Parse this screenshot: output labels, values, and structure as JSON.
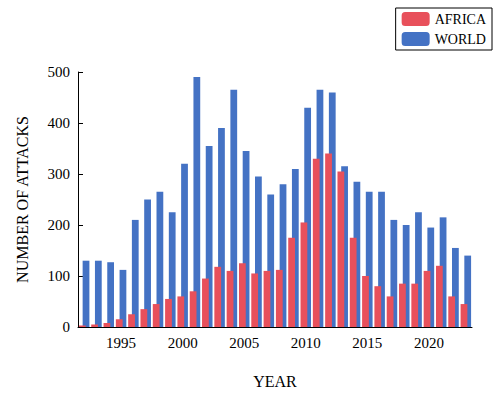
{
  "chart_data": {
    "type": "bar",
    "x_label": "YEAR",
    "y_label": "NUMBER OF ATTACKS",
    "categories": [
      null,
      null,
      null,
      "1995",
      null,
      null,
      null,
      null,
      "2000",
      null,
      null,
      null,
      null,
      "2005",
      null,
      null,
      null,
      null,
      "2010",
      null,
      null,
      null,
      null,
      "2015",
      null,
      null,
      null,
      null,
      "2020",
      null,
      null,
      null
    ],
    "series": [
      {
        "name": "AFRICA",
        "color": "#e8505b",
        "values": [
          3,
          5,
          8,
          15,
          25,
          35,
          45,
          55,
          60,
          70,
          95,
          118,
          110,
          125,
          105,
          110,
          112,
          175,
          205,
          330,
          340,
          305,
          175,
          100,
          80,
          60,
          85,
          85,
          110,
          120,
          60,
          45
        ]
      },
      {
        "name": "WORLD",
        "color": "#4472c4",
        "values": [
          130,
          130,
          127,
          112,
          210,
          250,
          265,
          225,
          320,
          490,
          355,
          390,
          465,
          345,
          295,
          260,
          280,
          310,
          430,
          465,
          460,
          315,
          285,
          265,
          265,
          210,
          200,
          225,
          195,
          215,
          155,
          140
        ]
      }
    ],
    "ylim": [
      0,
      500
    ],
    "yticks": [
      0,
      100,
      200,
      300,
      400,
      500
    ],
    "legend": "top-right",
    "grid": false
  }
}
